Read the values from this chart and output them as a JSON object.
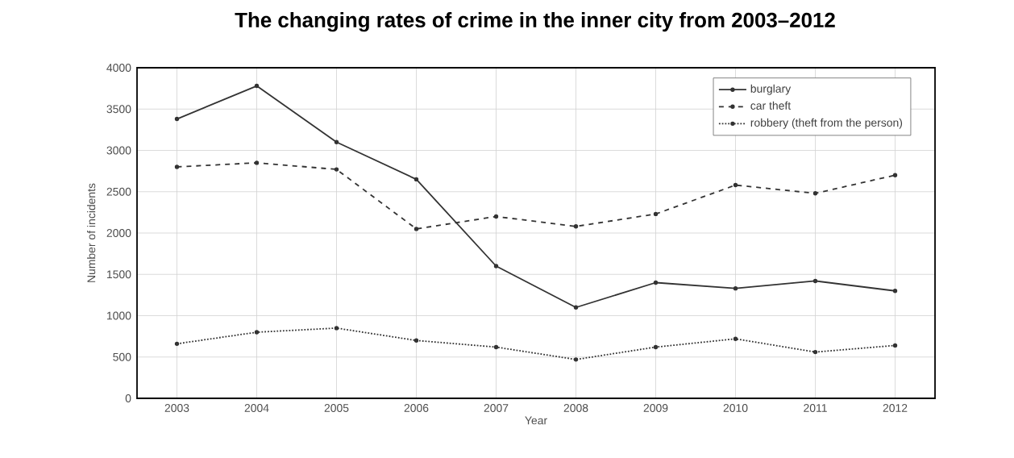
{
  "chart_data": {
    "type": "line",
    "title": "The changing rates of crime in the inner city from 2003–2012",
    "xlabel": "Year",
    "ylabel": "Number of incidents",
    "categories": [
      "2003",
      "2004",
      "2005",
      "2006",
      "2007",
      "2008",
      "2009",
      "2010",
      "2011",
      "2012"
    ],
    "series": [
      {
        "name": "burglary",
        "color": "#333333",
        "line_style": "solid",
        "values": [
          3380,
          3780,
          3100,
          2650,
          1600,
          1100,
          1400,
          1330,
          1420,
          1300
        ]
      },
      {
        "name": "car theft",
        "color": "#333333",
        "line_style": "dashed",
        "values": [
          2800,
          2850,
          2770,
          2050,
          2200,
          2080,
          2230,
          2580,
          2480,
          2700
        ]
      },
      {
        "name": "robbery (theft from the person)",
        "color": "#333333",
        "line_style": "dotted",
        "values": [
          660,
          800,
          850,
          700,
          620,
          470,
          620,
          720,
          560,
          640
        ]
      }
    ],
    "ylim": [
      0,
      4000
    ],
    "yticks": [
      0,
      500,
      1000,
      1500,
      2000,
      2500,
      3000,
      3500,
      4000
    ],
    "grid": true,
    "legend": "top right",
    "marker": "circle"
  }
}
